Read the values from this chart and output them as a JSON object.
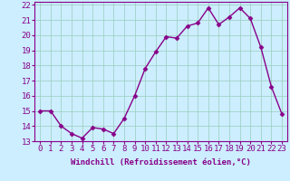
{
  "x": [
    0,
    1,
    2,
    3,
    4,
    5,
    6,
    7,
    8,
    9,
    10,
    11,
    12,
    13,
    14,
    15,
    16,
    17,
    18,
    19,
    20,
    21,
    22,
    23
  ],
  "y": [
    15.0,
    15.0,
    14.0,
    13.5,
    13.2,
    13.9,
    13.8,
    13.5,
    14.5,
    16.0,
    17.8,
    18.9,
    19.9,
    19.8,
    20.6,
    20.8,
    21.8,
    20.7,
    21.2,
    21.8,
    21.1,
    19.2,
    16.6,
    14.8
  ],
  "xlabel": "Windchill (Refroidissement éolien,°C)",
  "ylim": [
    13,
    22
  ],
  "xlim": [
    -0.5,
    23.5
  ],
  "yticks": [
    13,
    14,
    15,
    16,
    17,
    18,
    19,
    20,
    21,
    22
  ],
  "xticks": [
    0,
    1,
    2,
    3,
    4,
    5,
    6,
    7,
    8,
    9,
    10,
    11,
    12,
    13,
    14,
    15,
    16,
    17,
    18,
    19,
    20,
    21,
    22,
    23
  ],
  "line_color": "#880088",
  "marker": "D",
  "marker_size": 2.5,
  "bg_color": "#cceeff",
  "grid_color": "#99ccbb",
  "xlabel_fontsize": 6.5,
  "tick_fontsize": 6.5,
  "line_width": 1.0
}
